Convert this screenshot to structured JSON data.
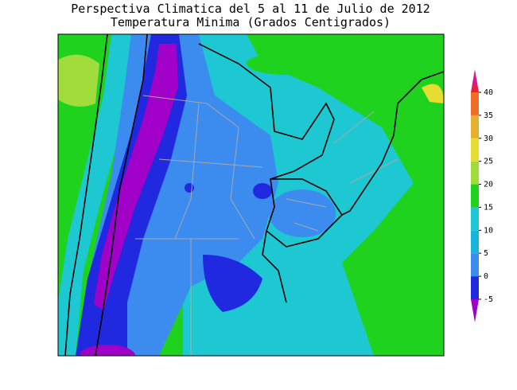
{
  "title": "Perspectiva Climatica del 5 al 11 de Julio de 2012",
  "subtitle": "Temperatura Minima (Grados Centigrados)",
  "colorbar": {
    "ticks": [
      -5,
      0,
      5,
      10,
      15,
      20,
      25,
      30,
      35,
      40
    ],
    "colors": [
      "#a000c8",
      "#2028e0",
      "#3c8cf0",
      "#19b4dc",
      "#1ec8d2",
      "#1ed21e",
      "#a0dc3c",
      "#e6dc32",
      "#e6af2d",
      "#f06e28",
      "#f01e3c",
      "#e0148c"
    ]
  }
}
